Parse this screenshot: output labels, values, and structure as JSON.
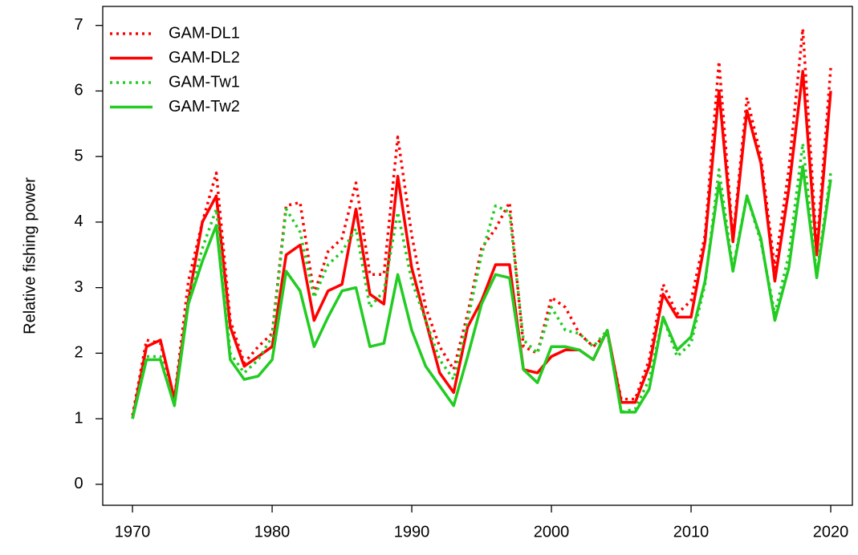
{
  "chart_data": {
    "type": "line",
    "y_label": "Relative fishing power",
    "x": [
      1970,
      1971,
      1972,
      1973,
      1974,
      1975,
      1976,
      1977,
      1978,
      1979,
      1980,
      1981,
      1982,
      1983,
      1984,
      1985,
      1986,
      1987,
      1988,
      1989,
      1990,
      1991,
      1992,
      1993,
      1994,
      1995,
      1996,
      1997,
      1998,
      1999,
      2000,
      2001,
      2002,
      2003,
      2004,
      2005,
      2006,
      2007,
      2008,
      2009,
      2010,
      2011,
      2012,
      2013,
      2014,
      2015,
      2016,
      2017,
      2018,
      2019,
      2020
    ],
    "series": [
      {
        "name": "GAM-DL1",
        "color": "#ff0000",
        "dashed": true,
        "values": [
          1.05,
          2.2,
          2.15,
          1.3,
          3.1,
          4.0,
          4.75,
          2.5,
          1.85,
          2.1,
          2.3,
          4.25,
          4.3,
          2.9,
          3.55,
          3.75,
          4.6,
          3.2,
          3.2,
          5.3,
          3.8,
          2.7,
          2.1,
          1.75,
          2.6,
          3.6,
          3.9,
          4.3,
          2.1,
          2.0,
          2.85,
          2.7,
          2.3,
          2.1,
          2.3,
          1.3,
          1.3,
          1.9,
          3.05,
          2.6,
          2.8,
          3.8,
          6.45,
          3.75,
          5.9,
          5.0,
          3.3,
          4.8,
          6.95,
          3.6,
          6.35
        ]
      },
      {
        "name": "GAM-DL2",
        "color": "#ff0000",
        "dashed": false,
        "values": [
          1.0,
          2.1,
          2.2,
          1.3,
          2.8,
          4.0,
          4.4,
          2.4,
          1.8,
          1.95,
          2.1,
          3.5,
          3.65,
          2.5,
          2.95,
          3.05,
          4.2,
          2.9,
          2.75,
          4.7,
          3.3,
          2.5,
          1.7,
          1.4,
          2.4,
          2.8,
          3.35,
          3.35,
          1.75,
          1.7,
          1.95,
          2.05,
          2.05,
          1.9,
          2.35,
          1.25,
          1.25,
          1.8,
          2.9,
          2.55,
          2.55,
          3.7,
          6.0,
          3.7,
          5.7,
          4.9,
          3.1,
          4.5,
          6.3,
          3.5,
          6.0
        ]
      },
      {
        "name": "GAM-Tw1",
        "color": "#22cc22",
        "dashed": true,
        "values": [
          1.0,
          1.95,
          1.95,
          1.2,
          2.8,
          3.6,
          4.2,
          2.0,
          1.7,
          1.9,
          2.25,
          4.2,
          3.85,
          2.85,
          3.35,
          3.55,
          3.9,
          2.7,
          2.95,
          4.15,
          3.1,
          2.5,
          1.9,
          1.6,
          2.5,
          3.5,
          4.25,
          4.15,
          2.2,
          2.0,
          2.7,
          2.35,
          2.3,
          2.1,
          2.35,
          1.1,
          1.15,
          1.6,
          2.55,
          1.95,
          2.15,
          3.05,
          4.8,
          3.3,
          4.4,
          3.7,
          2.6,
          3.5,
          5.2,
          3.2,
          4.75
        ]
      },
      {
        "name": "GAM-Tw2",
        "color": "#22cc22",
        "dashed": false,
        "values": [
          1.0,
          1.9,
          1.9,
          1.2,
          2.75,
          3.4,
          3.95,
          1.9,
          1.6,
          1.65,
          1.9,
          3.25,
          2.95,
          2.1,
          2.55,
          2.95,
          3.0,
          2.1,
          2.15,
          3.2,
          2.35,
          1.8,
          1.5,
          1.2,
          1.95,
          2.75,
          3.2,
          3.15,
          1.75,
          1.55,
          2.1,
          2.1,
          2.05,
          1.9,
          2.35,
          1.1,
          1.1,
          1.45,
          2.55,
          2.05,
          2.25,
          3.1,
          4.6,
          3.25,
          4.4,
          3.75,
          2.5,
          3.3,
          4.85,
          3.15,
          4.65
        ]
      }
    ],
    "xlim": [
      1967.87,
      2021.55
    ],
    "ylim": [
      -0.32,
      7.29
    ],
    "xticks": [
      1970,
      1980,
      1990,
      2000,
      2010,
      2020
    ],
    "yticks": [
      0,
      1,
      2,
      3,
      4,
      5,
      6,
      7
    ],
    "legend": "top-left"
  }
}
